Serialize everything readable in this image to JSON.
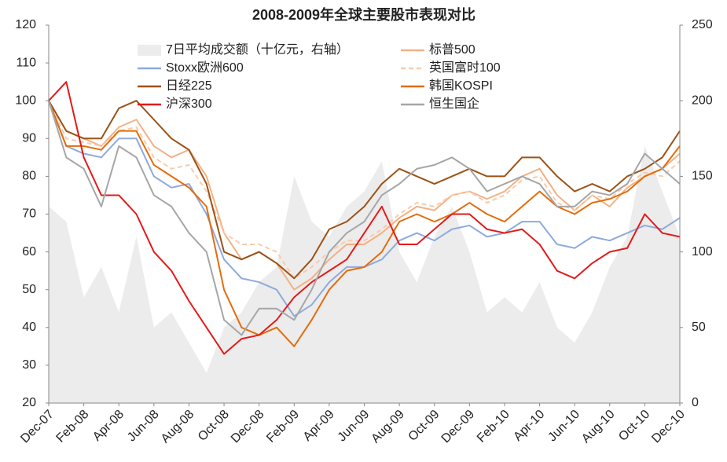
{
  "chart_data": {
    "type": "line",
    "title": "2008-2009年全球主要股市表现对比",
    "categories": [
      "Dec-07",
      null,
      "Feb-08",
      null,
      "Apr-08",
      null,
      "Jun-08",
      null,
      "Aug-08",
      null,
      "Oct-08",
      null,
      "Dec-08",
      null,
      "Feb-09",
      null,
      "Apr-09",
      null,
      "Jun-09",
      null,
      "Aug-09",
      null,
      "Oct-09",
      null,
      "Dec-09",
      null,
      "Feb-10",
      null,
      "Apr-10",
      null,
      "Jun-10",
      null,
      "Aug-10",
      null,
      "Oct-10",
      null,
      "Dec-10"
    ],
    "ylim": [
      20,
      120
    ],
    "yticks": [
      20,
      30,
      40,
      50,
      60,
      70,
      80,
      90,
      100,
      110,
      120
    ],
    "y2lim": [
      0,
      250
    ],
    "y2ticks": [
      0,
      50,
      100,
      150,
      200,
      250
    ],
    "series": [
      {
        "name": "7日平均成交额（十亿元，右轴）",
        "color": "#ececec",
        "type": "area",
        "axis": "y2",
        "values": [
          130,
          120,
          70,
          90,
          60,
          110,
          50,
          60,
          40,
          20,
          50,
          60,
          80,
          90,
          150,
          120,
          110,
          130,
          140,
          160,
          100,
          80,
          110,
          130,
          100,
          60,
          70,
          60,
          80,
          50,
          40,
          60,
          90,
          110,
          170,
          140,
          110
        ]
      },
      {
        "name": "标普500",
        "color": "#f4b183",
        "values": [
          100,
          92,
          90,
          88,
          93,
          95,
          88,
          85,
          87,
          80,
          65,
          58,
          60,
          57,
          50,
          53,
          58,
          62,
          62,
          65,
          69,
          72,
          71,
          75,
          76,
          74,
          76,
          80,
          82,
          75,
          71,
          75,
          72,
          77,
          80,
          82,
          86
        ]
      },
      {
        "name": "Stoxx欧洲600",
        "color": "#8faadc",
        "values": [
          100,
          88,
          86,
          85,
          90,
          90,
          80,
          77,
          78,
          70,
          58,
          53,
          52,
          50,
          43,
          46,
          52,
          56,
          56,
          58,
          63,
          65,
          63,
          66,
          67,
          64,
          65,
          68,
          68,
          62,
          61,
          64,
          63,
          65,
          67,
          66,
          69
        ]
      },
      {
        "name": "英国富时100",
        "color": "#f8cbad",
        "dashed": true,
        "values": [
          100,
          90,
          89,
          88,
          92,
          93,
          85,
          82,
          83,
          76,
          65,
          62,
          62,
          60,
          53,
          56,
          60,
          63,
          63,
          66,
          70,
          73,
          72,
          75,
          76,
          73,
          75,
          79,
          80,
          73,
          71,
          75,
          74,
          78,
          81,
          80,
          84
        ]
      },
      {
        "name": "日经225",
        "color": "#9c5216",
        "values": [
          100,
          92,
          90,
          90,
          98,
          100,
          95,
          90,
          87,
          78,
          60,
          58,
          60,
          57,
          53,
          58,
          66,
          68,
          72,
          78,
          82,
          80,
          78,
          80,
          82,
          80,
          80,
          85,
          85,
          80,
          76,
          78,
          76,
          80,
          82,
          85,
          92
        ]
      },
      {
        "name": "韩国KOSPI",
        "color": "#e46c0a",
        "values": [
          100,
          88,
          88,
          87,
          92,
          92,
          83,
          80,
          77,
          72,
          50,
          40,
          38,
          40,
          35,
          42,
          50,
          55,
          56,
          60,
          68,
          70,
          68,
          70,
          73,
          70,
          68,
          72,
          76,
          72,
          70,
          73,
          74,
          76,
          80,
          82,
          88
        ]
      },
      {
        "name": "沪深300",
        "color": "#e41a1a",
        "values": [
          100,
          105,
          85,
          75,
          75,
          70,
          60,
          55,
          47,
          40,
          33,
          37,
          38,
          42,
          48,
          52,
          55,
          58,
          65,
          72,
          62,
          62,
          66,
          70,
          70,
          66,
          65,
          66,
          62,
          55,
          53,
          57,
          60,
          61,
          70,
          65,
          64
        ]
      },
      {
        "name": "恒生国企",
        "color": "#a6a6a6",
        "values": [
          100,
          85,
          82,
          72,
          88,
          85,
          75,
          72,
          65,
          60,
          42,
          38,
          45,
          45,
          42,
          50,
          60,
          65,
          68,
          75,
          78,
          82,
          83,
          85,
          82,
          76,
          78,
          80,
          78,
          72,
          72,
          76,
          75,
          78,
          86,
          82,
          78
        ]
      }
    ]
  }
}
